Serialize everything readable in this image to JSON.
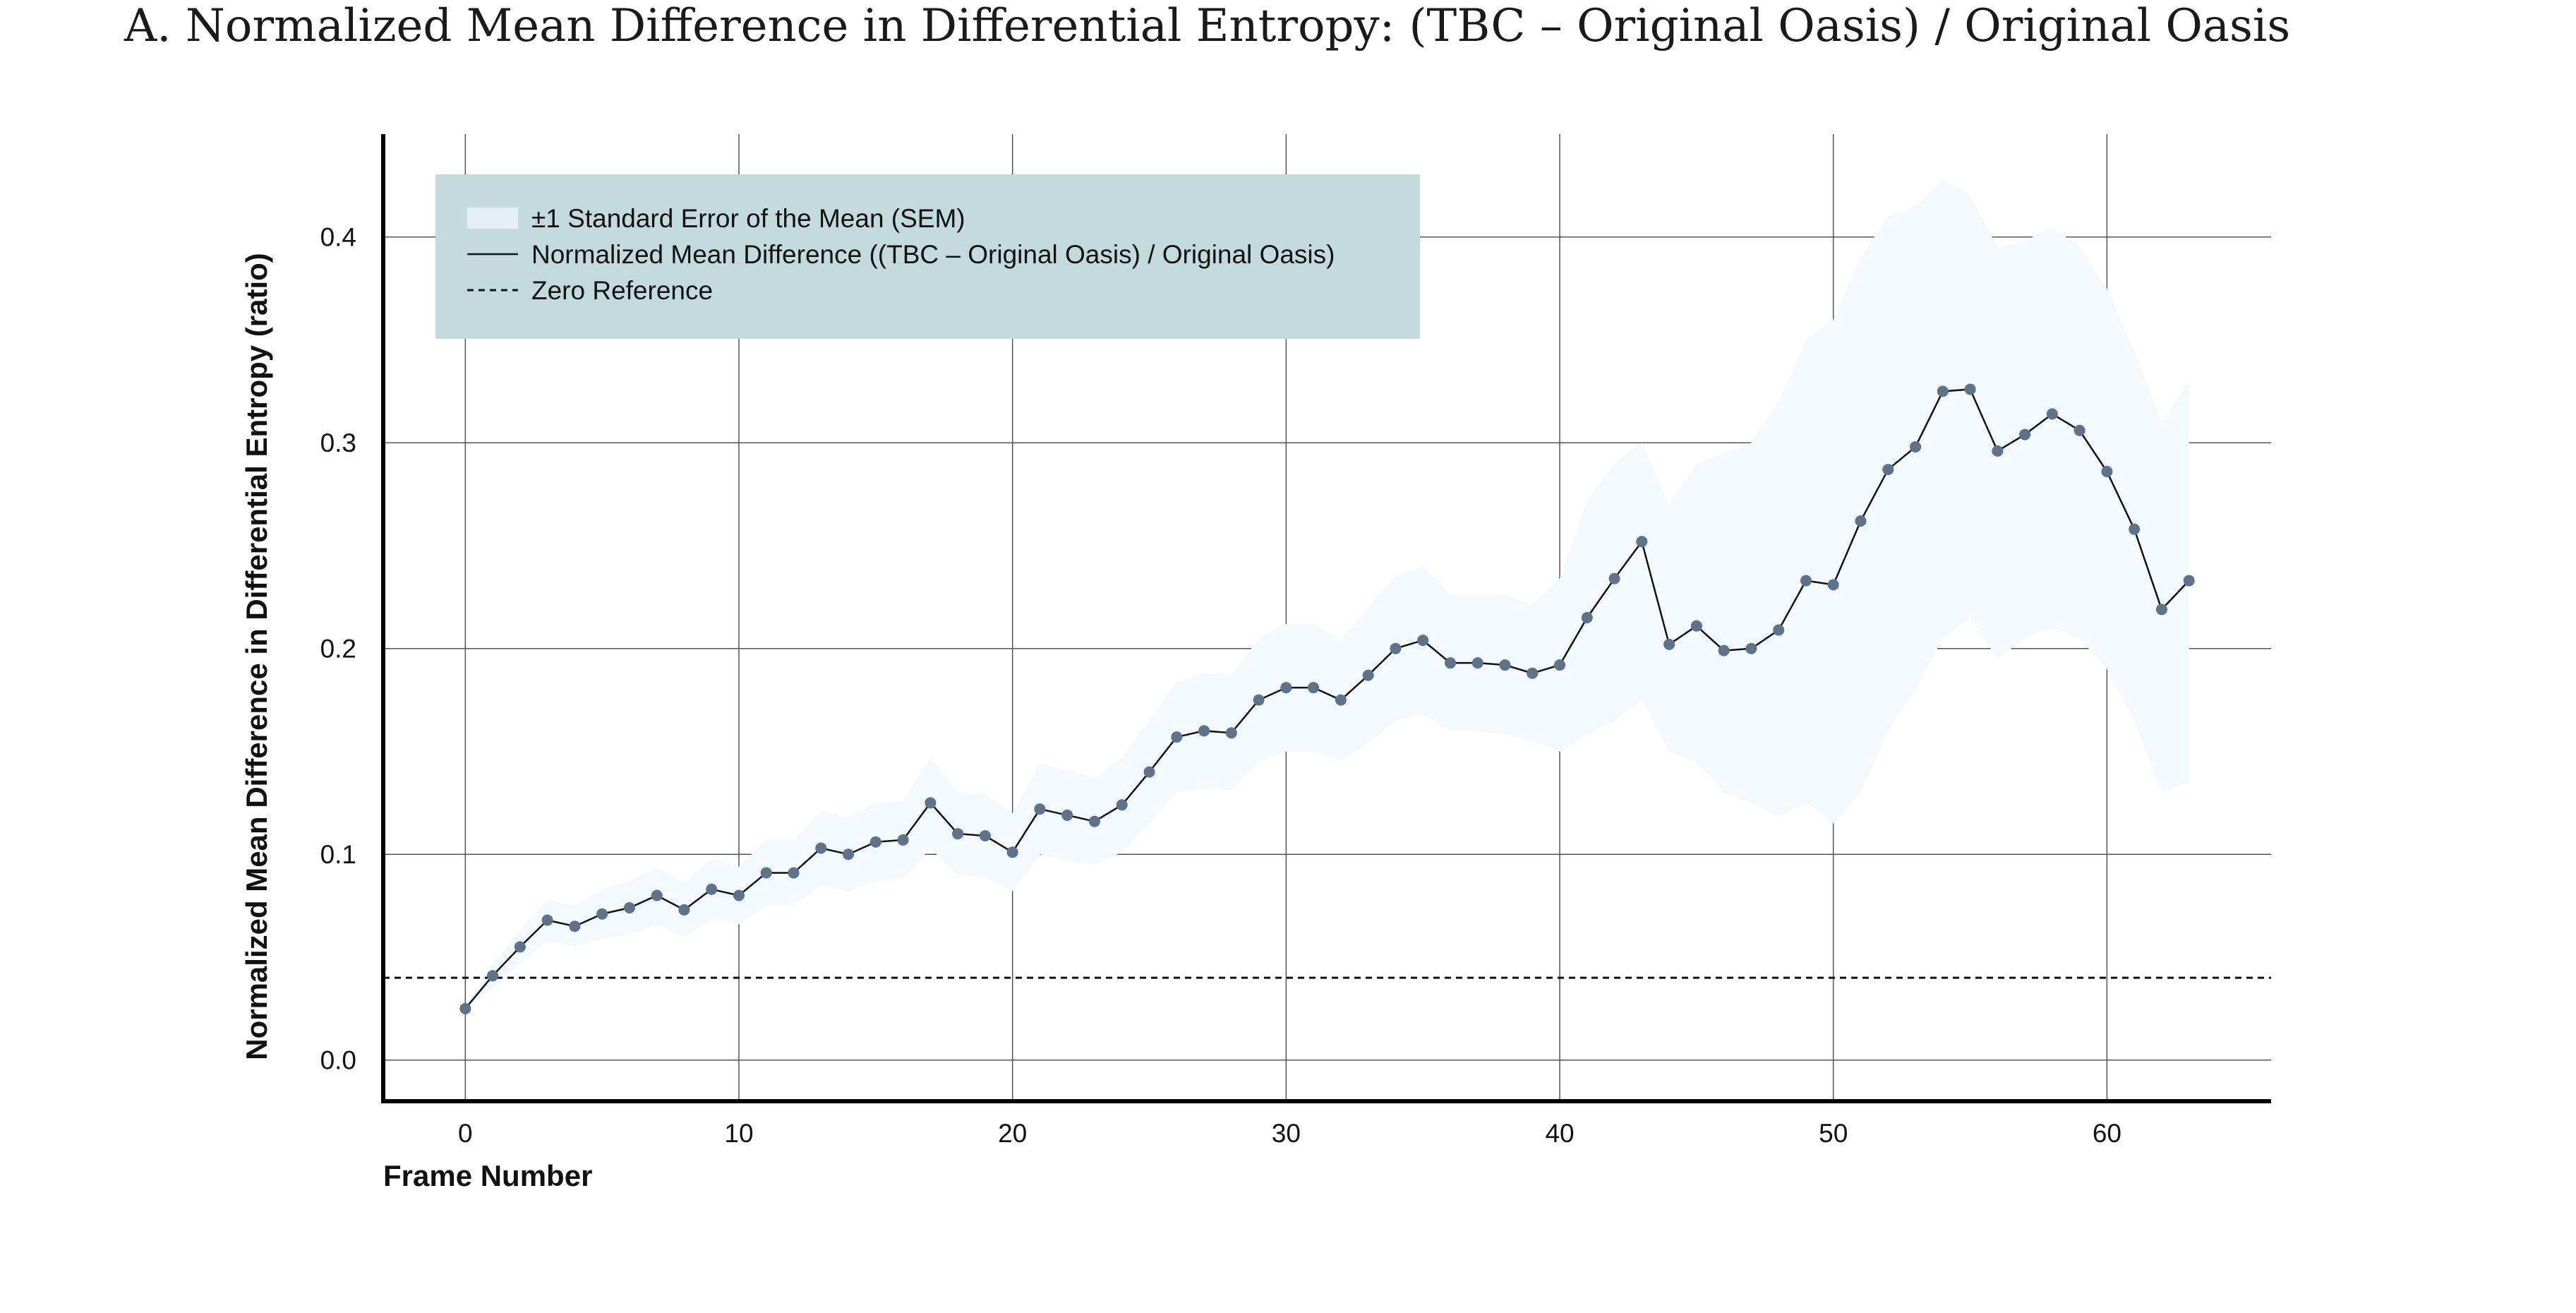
{
  "chart_data": {
    "type": "line",
    "title": "A. Normalized Mean Difference in Differential Entropy: (TBC – Original Oasis) / Original Oasis",
    "xlabel": "Frame Number",
    "ylabel": "Normalized Mean Difference in Differential Entropy (ratio)",
    "xlim": [
      -3,
      66
    ],
    "ylim": [
      -0.02,
      0.45
    ],
    "xticks": [
      0,
      10,
      20,
      30,
      40,
      50,
      60
    ],
    "yticks": [
      0.0,
      0.1,
      0.2,
      0.3,
      0.4
    ],
    "xtick_labels": [
      "0",
      "10",
      "20",
      "30",
      "40",
      "50",
      "60"
    ],
    "ytick_labels": [
      "0.0",
      "0.1",
      "0.2",
      "0.3",
      "0.4"
    ],
    "grid": true,
    "legend": {
      "placement": "top-left",
      "background": "#c4dbde",
      "entries": [
        {
          "label": "±1 Standard Error of the Mean (SEM)",
          "kind": "band",
          "color": "#e3eff5"
        },
        {
          "label": "Normalized Mean Difference ((TBC – Original Oasis) / Original Oasis)",
          "kind": "line",
          "color": "#111111"
        },
        {
          "label": "Zero Reference",
          "kind": "dashed",
          "color": "#111111"
        }
      ]
    },
    "reference_line": {
      "y": 0.04,
      "style": "dashed",
      "color": "#111111"
    },
    "colors": {
      "marker": "#5e7389",
      "line": "#111111",
      "band": "#f3f9fd",
      "grid": "#555555"
    },
    "series": [
      {
        "name": "Normalized Mean Difference ((TBC – Original Oasis) / Original Oasis)",
        "x": [
          0,
          1,
          2,
          3,
          4,
          5,
          6,
          7,
          8,
          9,
          10,
          11,
          12,
          13,
          14,
          15,
          16,
          17,
          18,
          19,
          20,
          21,
          22,
          23,
          24,
          25,
          26,
          27,
          28,
          29,
          30,
          31,
          32,
          33,
          34,
          35,
          36,
          37,
          38,
          39,
          40,
          41,
          42,
          43,
          44,
          45,
          46,
          47,
          48,
          49,
          50,
          51,
          52,
          53,
          54,
          55,
          56,
          57,
          58,
          59,
          60,
          61,
          62,
          63
        ],
        "y": [
          0.025,
          0.041,
          0.055,
          0.068,
          0.065,
          0.071,
          0.074,
          0.08,
          0.073,
          0.083,
          0.08,
          0.091,
          0.091,
          0.103,
          0.1,
          0.106,
          0.107,
          0.125,
          0.11,
          0.109,
          0.101,
          0.122,
          0.119,
          0.116,
          0.124,
          0.14,
          0.157,
          0.16,
          0.159,
          0.175,
          0.181,
          0.181,
          0.175,
          0.187,
          0.2,
          0.204,
          0.193,
          0.193,
          0.192,
          0.188,
          0.192,
          0.215,
          0.234,
          0.252,
          0.202,
          0.211,
          0.199,
          0.2,
          0.209,
          0.233,
          0.231,
          0.262,
          0.287,
          0.298,
          0.325,
          0.326,
          0.296,
          0.304,
          0.314,
          0.306,
          0.286,
          0.258,
          0.219,
          0.233
        ],
        "sem_lower": [
          0.025,
          0.035,
          0.047,
          0.058,
          0.055,
          0.059,
          0.061,
          0.066,
          0.06,
          0.068,
          0.066,
          0.075,
          0.075,
          0.085,
          0.082,
          0.087,
          0.088,
          0.103,
          0.09,
          0.089,
          0.082,
          0.1,
          0.097,
          0.095,
          0.101,
          0.115,
          0.13,
          0.132,
          0.131,
          0.145,
          0.15,
          0.15,
          0.146,
          0.154,
          0.165,
          0.168,
          0.16,
          0.16,
          0.158,
          0.155,
          0.15,
          0.158,
          0.165,
          0.175,
          0.15,
          0.145,
          0.13,
          0.125,
          0.118,
          0.125,
          0.115,
          0.13,
          0.16,
          0.18,
          0.205,
          0.215,
          0.195,
          0.205,
          0.21,
          0.205,
          0.19,
          0.165,
          0.13,
          0.135
        ],
        "sem_upper": [
          0.025,
          0.047,
          0.063,
          0.078,
          0.075,
          0.083,
          0.087,
          0.094,
          0.086,
          0.098,
          0.094,
          0.107,
          0.107,
          0.121,
          0.118,
          0.125,
          0.126,
          0.147,
          0.13,
          0.129,
          0.12,
          0.144,
          0.141,
          0.137,
          0.147,
          0.165,
          0.184,
          0.188,
          0.187,
          0.205,
          0.212,
          0.212,
          0.204,
          0.22,
          0.235,
          0.24,
          0.226,
          0.226,
          0.226,
          0.221,
          0.234,
          0.272,
          0.29,
          0.3,
          0.27,
          0.29,
          0.295,
          0.3,
          0.32,
          0.35,
          0.36,
          0.39,
          0.41,
          0.415,
          0.428,
          0.42,
          0.395,
          0.398,
          0.405,
          0.395,
          0.375,
          0.345,
          0.31,
          0.33
        ]
      }
    ]
  }
}
